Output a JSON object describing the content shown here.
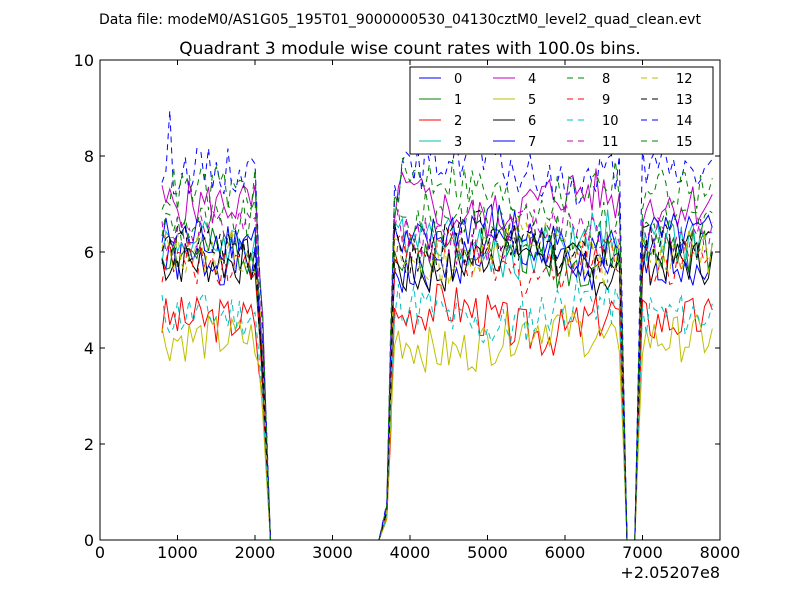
{
  "header": {
    "file_text": "Data file: modeM0/AS1G05_195T01_9000000530_04130cztM0_level2_quad_clean.evt"
  },
  "chart_data": {
    "type": "line",
    "title": "Quadrant 3 module wise count rates with 100.0s bins.",
    "xlabel": "",
    "ylabel": "",
    "x_offset_text": "+2.05207e8",
    "xlim": [
      0,
      8000
    ],
    "ylim": [
      0,
      10
    ],
    "xticks": [
      0,
      1000,
      2000,
      3000,
      4000,
      5000,
      6000,
      7000,
      8000
    ],
    "yticks": [
      0,
      2,
      4,
      6,
      8,
      10
    ],
    "grid": false,
    "legend_position": "top-right",
    "series": [
      {
        "name": "0",
        "color": "#0000ff",
        "dash": "solid",
        "base": 5.8,
        "seed": 1
      },
      {
        "name": "1",
        "color": "#008000",
        "dash": "solid",
        "base": 6.0,
        "seed": 2
      },
      {
        "name": "2",
        "color": "#ff0000",
        "dash": "solid",
        "base": 4.6,
        "seed": 3
      },
      {
        "name": "3",
        "color": "#00bfbf",
        "dash": "solid",
        "base": 6.2,
        "seed": 4
      },
      {
        "name": "4",
        "color": "#bf00bf",
        "dash": "solid",
        "base": 7.0,
        "seed": 5
      },
      {
        "name": "5",
        "color": "#bfbf00",
        "dash": "solid",
        "base": 4.2,
        "seed": 6
      },
      {
        "name": "6",
        "color": "#000000",
        "dash": "solid",
        "base": 5.8,
        "seed": 7
      },
      {
        "name": "7",
        "color": "#0000ff",
        "dash": "solid",
        "base": 6.3,
        "seed": 8
      },
      {
        "name": "8",
        "color": "#008000",
        "dash": "dashed",
        "base": 6.6,
        "seed": 9
      },
      {
        "name": "9",
        "color": "#ff0000",
        "dash": "dashed",
        "base": 5.8,
        "seed": 10
      },
      {
        "name": "10",
        "color": "#00bfbf",
        "dash": "dashed",
        "base": 4.7,
        "seed": 11
      },
      {
        "name": "11",
        "color": "#bf00bf",
        "dash": "dashed",
        "base": 6.4,
        "seed": 12
      },
      {
        "name": "12",
        "color": "#bfbf00",
        "dash": "dashed",
        "base": 6.0,
        "seed": 13
      },
      {
        "name": "13",
        "color": "#000000",
        "dash": "dashed",
        "base": 6.1,
        "seed": 14
      },
      {
        "name": "14",
        "color": "#0000ff",
        "dash": "dashed",
        "base": 7.7,
        "seed": 15
      },
      {
        "name": "15",
        "color": "#008000",
        "dash": "dashed",
        "base": 7.3,
        "seed": 16
      }
    ]
  }
}
